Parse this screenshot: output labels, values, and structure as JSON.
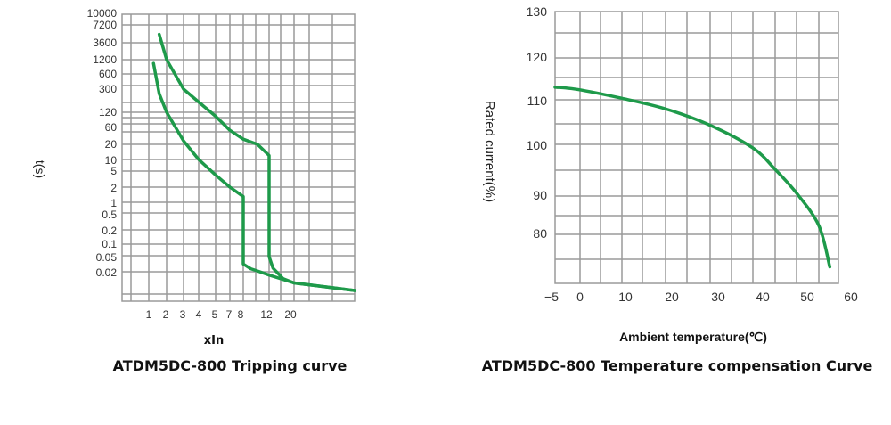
{
  "colors": {
    "curve": "#1e9a4a",
    "grid": "#9a9a9a"
  },
  "chart_data": [
    {
      "type": "line",
      "title": "ATDM5DC-800 Tripping curve",
      "xlabel": "xIn",
      "ylabel": "t(s)",
      "x_scale": "log-like (non-uniform)",
      "y_scale": "log-like (non-uniform)",
      "grid": true,
      "x_ticks": [
        "1",
        "2",
        "3",
        "4",
        "5",
        "7",
        "8",
        "12",
        "20"
      ],
      "y_ticks": [
        "10000",
        "7200",
        "3600",
        "1200",
        "600",
        "300",
        "120",
        "60",
        "20",
        "10",
        "5",
        "2",
        "1",
        "0.5",
        "0.2",
        "0.1",
        "0.05",
        "0.02"
      ],
      "series": [
        {
          "points": [
            [
              1.2,
              1000
            ],
            [
              1.5,
              250
            ],
            [
              2,
              120
            ],
            [
              3,
              25
            ],
            [
              4,
              10
            ],
            [
              5,
              4
            ],
            [
              7,
              2
            ],
            [
              8,
              1.3
            ],
            [
              8,
              0.5
            ],
            [
              8,
              0.05
            ],
            [
              8,
              0.032
            ],
            [
              9,
              0.024
            ],
            [
              10,
              0.021
            ],
            [
              12,
              0.018
            ],
            [
              20,
              0.014
            ],
            [
              30,
              0.012
            ],
            [
              50,
              0.011
            ]
          ]
        },
        {
          "points": [
            [
              1.5,
              5000
            ],
            [
              2,
              1200
            ],
            [
              3,
              300
            ],
            [
              4,
              180
            ],
            [
              5,
              100
            ],
            [
              7,
              50
            ],
            [
              8,
              28
            ],
            [
              10,
              20
            ],
            [
              12,
              12
            ],
            [
              12,
              1
            ],
            [
              12,
              0.05
            ],
            [
              13,
              0.025
            ],
            [
              16,
              0.016
            ],
            [
              20,
              0.014
            ],
            [
              30,
              0.012
            ],
            [
              50,
              0.011
            ]
          ]
        }
      ]
    },
    {
      "type": "line",
      "title": "ATDM5DC-800 Temperature compensation Curve",
      "xlabel": "Ambient temperature(℃)",
      "ylabel": "Rated current(%)",
      "grid": true,
      "x_ticks": [
        "−5",
        "0",
        "10",
        "20",
        "30",
        "40",
        "50",
        "60"
      ],
      "y_ticks": [
        "130",
        "120",
        "110",
        "100",
        "90",
        "80"
      ],
      "series": [
        {
          "points": [
            [
              -5,
              113
            ],
            [
              0,
              112.5
            ],
            [
              10,
              110.4
            ],
            [
              20,
              108
            ],
            [
              30,
              104.4
            ],
            [
              40,
              99.3
            ],
            [
              45,
              95.2
            ],
            [
              50,
              90.5
            ],
            [
              55,
              82.3
            ],
            [
              57.5,
              71.5
            ]
          ]
        }
      ]
    }
  ]
}
